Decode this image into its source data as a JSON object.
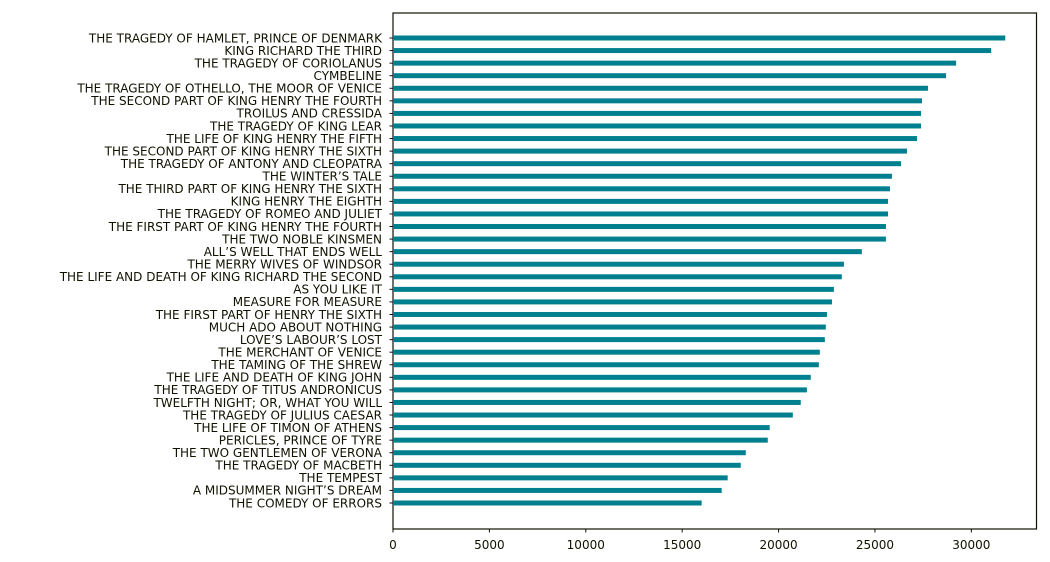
{
  "chart_data": {
    "type": "bar",
    "orientation": "horizontal",
    "title": "",
    "xlabel": "",
    "ylabel": "",
    "xlim": [
      0,
      33380
    ],
    "xticks": [
      0,
      5000,
      10000,
      15000,
      20000,
      25000,
      30000
    ],
    "xtick_labels": [
      "0",
      "5000",
      "10000",
      "15000",
      "20000",
      "25000",
      "30000"
    ],
    "grid": false,
    "bar_color": "#00808f",
    "categories": [
      "THE TRAGEDY OF HAMLET, PRINCE OF DENMARK",
      "KING RICHARD THE THIRD",
      "THE TRAGEDY OF CORIOLANUS",
      "CYMBELINE",
      "THE TRAGEDY OF OTHELLO, THE MOOR OF VENICE",
      "THE SECOND PART OF KING HENRY THE FOURTH",
      "TROILUS AND CRESSIDA",
      "THE TRAGEDY OF KING LEAR",
      "THE LIFE OF KING HENRY THE FIFTH",
      "THE SECOND PART OF KING HENRY THE SIXTH",
      "THE TRAGEDY OF ANTONY AND CLEOPATRA",
      "THE WINTER’S TALE",
      "THE THIRD PART OF KING HENRY THE SIXTH",
      "KING HENRY THE EIGHTH",
      "THE TRAGEDY OF ROMEO AND JULIET",
      "THE FIRST PART OF KING HENRY THE FOURTH",
      "THE TWO NOBLE KINSMEN",
      "ALL’S WELL THAT ENDS WELL",
      "THE MERRY WIVES OF WINDSOR",
      "THE LIFE AND DEATH OF KING RICHARD THE SECOND",
      "AS YOU LIKE IT",
      "MEASURE FOR MEASURE",
      "THE FIRST PART OF HENRY THE SIXTH",
      "MUCH ADO ABOUT NOTHING",
      "LOVE’S LABOUR’S LOST",
      "THE MERCHANT OF VENICE",
      "THE TAMING OF THE SHREW",
      "THE LIFE AND DEATH OF KING JOHN",
      "THE TRAGEDY OF TITUS ANDRONICUS",
      "TWELFTH NIGHT; OR, WHAT YOU WILL",
      "THE TRAGEDY OF JULIUS CAESAR",
      "THE LIFE OF TIMON OF ATHENS",
      "PERICLES, PRINCE OF TYRE",
      "THE TWO GENTLEMEN OF VERONA",
      "THE TRAGEDY OF MACBETH",
      "THE TEMPEST",
      "A MIDSUMMER NIGHT’S DREAM",
      "THE COMEDY OF ERRORS"
    ],
    "values": [
      31760,
      31030,
      29210,
      28690,
      27750,
      27440,
      27390,
      27390,
      27180,
      26660,
      26350,
      25880,
      25780,
      25680,
      25680,
      25570,
      25570,
      24320,
      23390,
      23280,
      22870,
      22770,
      22510,
      22450,
      22400,
      22140,
      22090,
      21670,
      21470,
      21150,
      20740,
      19540,
      19440,
      18300,
      18040,
      17360,
      17050,
      16010
    ]
  }
}
